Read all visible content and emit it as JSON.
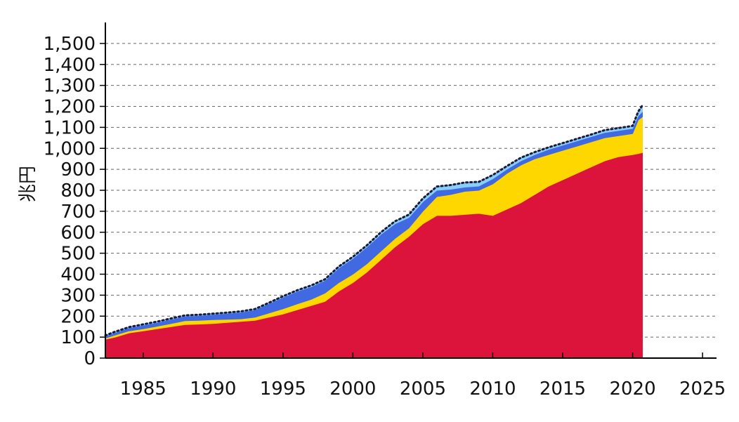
{
  "chart_data": {
    "type": "area",
    "stacked": true,
    "title": "",
    "xlabel": "",
    "ylabel": "兆円",
    "xlim": [
      1982.3,
      2026
    ],
    "ylim": [
      0,
      1600
    ],
    "grid": {
      "y": true,
      "style": "dashed"
    },
    "legend": "none",
    "x_ticks": [
      1985,
      1990,
      1995,
      2000,
      2005,
      2010,
      2015,
      2020,
      2025
    ],
    "x_tick_labels": [
      "1985",
      "1990",
      "1995",
      "2000",
      "2005",
      "2010",
      "2015",
      "2020",
      "2025"
    ],
    "y_ticks": [
      0,
      100,
      200,
      300,
      400,
      500,
      600,
      700,
      800,
      900,
      1000,
      1100,
      1200,
      1300,
      1400,
      1500
    ],
    "y_tick_labels": [
      "0",
      "100",
      "200",
      "300",
      "400",
      "500",
      "600",
      "700",
      "800",
      "900",
      "1,000",
      "1,100",
      "1,200",
      "1,300",
      "1,400",
      "1,500"
    ],
    "x": [
      1982.3,
      1983,
      1984,
      1985,
      1986,
      1987,
      1988,
      1989,
      1990,
      1991,
      1992,
      1993,
      1994,
      1995,
      1996,
      1997,
      1998,
      1999,
      2000,
      2001,
      2002,
      2003,
      2004,
      2005,
      2006,
      2007,
      2008,
      2009,
      2010,
      2011,
      2012,
      2013,
      2014,
      2015,
      2016,
      2017,
      2018,
      2019,
      2020,
      2020.4,
      2020.7
    ],
    "series": [
      {
        "color": "#dc143c",
        "values": [
          90,
          100,
          120,
          130,
          140,
          150,
          160,
          162,
          165,
          170,
          175,
          180,
          195,
          210,
          230,
          250,
          270,
          320,
          360,
          410,
          470,
          530,
          580,
          640,
          680,
          680,
          685,
          690,
          680,
          710,
          740,
          780,
          820,
          850,
          880,
          910,
          940,
          960,
          970,
          975,
          980
        ]
      },
      {
        "color": "#ffd700",
        "values": [
          5,
          10,
          10,
          10,
          12,
          15,
          18,
          18,
          18,
          15,
          12,
          15,
          20,
          25,
          28,
          30,
          40,
          40,
          40,
          40,
          40,
          40,
          40,
          60,
          90,
          100,
          110,
          110,
          150,
          170,
          180,
          170,
          150,
          140,
          130,
          120,
          110,
          100,
          100,
          160,
          170
        ]
      },
      {
        "color": "#4169e1",
        "values": [
          10,
          12,
          15,
          17,
          18,
          20,
          22,
          23,
          25,
          28,
          32,
          35,
          45,
          55,
          60,
          60,
          60,
          70,
          75,
          80,
          80,
          70,
          50,
          45,
          30,
          25,
          20,
          20,
          25,
          20,
          20,
          20,
          25,
          25,
          25,
          25,
          25,
          25,
          25,
          20,
          25
        ]
      },
      {
        "color": "#87cefa",
        "values": [
          3,
          4,
          4,
          4,
          4,
          4,
          4,
          4,
          4,
          4,
          4,
          4,
          4,
          5,
          5,
          6,
          6,
          7,
          8,
          8,
          10,
          12,
          14,
          16,
          18,
          20,
          22,
          20,
          18,
          15,
          15,
          12,
          10,
          10,
          10,
          10,
          12,
          12,
          12,
          20,
          30
        ]
      }
    ],
    "total_line": {
      "style": "dotted",
      "color": "#1a1a3a",
      "values": [
        108,
        126,
        148,
        161,
        174,
        189,
        204,
        207,
        212,
        217,
        223,
        234,
        264,
        295,
        323,
        346,
        376,
        437,
        483,
        538,
        600,
        652,
        684,
        761,
        818,
        825,
        837,
        840,
        873,
        915,
        955,
        982,
        1005,
        1025,
        1045,
        1065,
        1087,
        1097,
        1107,
        1175,
        1205
      ]
    }
  }
}
